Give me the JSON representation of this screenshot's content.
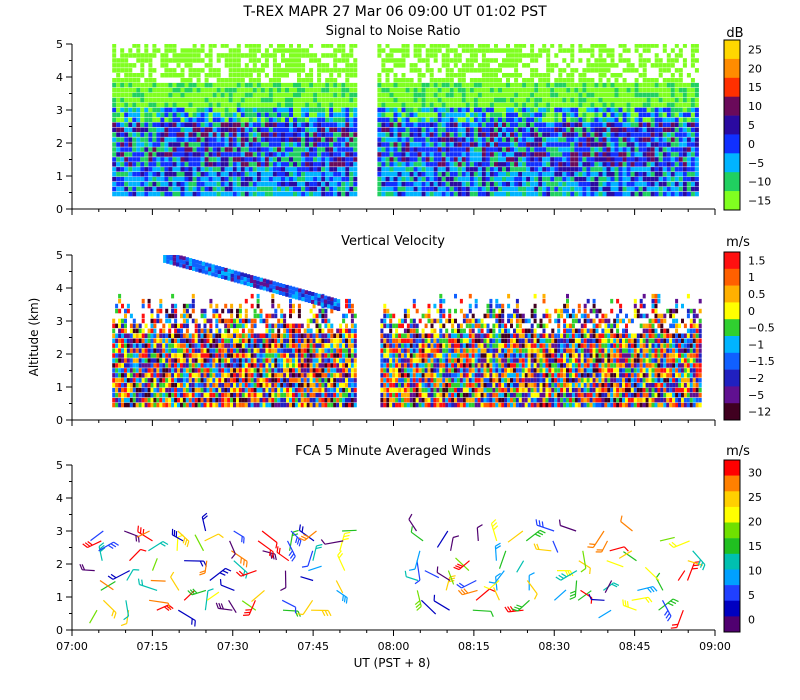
{
  "figure": {
    "title": "T-REX   MAPR 27 Mar 06   09:00 UT   01:02   PST",
    "ylabel": "Altitude (km)",
    "xlabel": "UT  (PST + 8)",
    "x_ticks": [
      "07:00",
      "07:15",
      "07:30",
      "07:45",
      "08:00",
      "08:15",
      "08:30",
      "08:45",
      "09:00"
    ],
    "y_ticks": [
      "0",
      "1",
      "2",
      "3",
      "4",
      "5"
    ]
  },
  "chart_data": [
    {
      "type": "heatmap",
      "title": "Signal to Noise Ratio",
      "units": "dB",
      "x_range_min": [
        0,
        120
      ],
      "ylim": [
        0,
        5
      ],
      "ylabel": "Altitude (km)",
      "data_gap_min": [
        53,
        57
      ],
      "colorbar": {
        "labels": [
          "25",
          "20",
          "15",
          "10",
          "5",
          "0",
          "−5",
          "−10",
          "−15"
        ],
        "values": [
          25,
          20,
          15,
          10,
          5,
          0,
          -5,
          -10,
          -15
        ],
        "colors": [
          "#ffd700",
          "#ff8c00",
          "#ff3000",
          "#6a0a5a",
          "#2a0aa0",
          "#1030ff",
          "#00b4ff",
          "#20d060",
          "#80ff20"
        ]
      }
    },
    {
      "type": "heatmap",
      "title": "Vertical Velocity",
      "units": "m/s",
      "x_range_min": [
        0,
        120
      ],
      "ylim": [
        0,
        5
      ],
      "ylabel": "Altitude (km)",
      "data_gap_min": [
        53,
        57
      ],
      "colorbar": {
        "labels": [
          "1.5",
          "1",
          "0.5",
          "0",
          "−0.5",
          "−1",
          "−1.5",
          "−2",
          "−5",
          "−12"
        ],
        "values": [
          1.5,
          1,
          0.5,
          0,
          -0.5,
          -1,
          -1.5,
          -2,
          -5,
          -12
        ],
        "colors": [
          "#ff1010",
          "#ff6000",
          "#ffb000",
          "#ffff00",
          "#30d030",
          "#00b4ff",
          "#1060ff",
          "#2020c0",
          "#601090",
          "#400020"
        ]
      }
    },
    {
      "type": "scatter",
      "title": "FCA 5 Minute Averaged Winds",
      "units": "m/s",
      "x_range_min": [
        0,
        120
      ],
      "ylim": [
        0,
        5
      ],
      "ylabel": "Altitude (km)",
      "data_gap_min": [
        53,
        57
      ],
      "colorbar": {
        "labels": [
          "30",
          "25",
          "20",
          "15",
          "10",
          "5",
          "0"
        ],
        "values": [
          30,
          25,
          20,
          15,
          10,
          5,
          0
        ],
        "colors": [
          "#ff0000",
          "#ff8000",
          "#ffd000",
          "#ffff00",
          "#70e000",
          "#20c020",
          "#00c0b0",
          "#00a0ff",
          "#2040ff",
          "#0000c0",
          "#500070"
        ]
      }
    }
  ]
}
